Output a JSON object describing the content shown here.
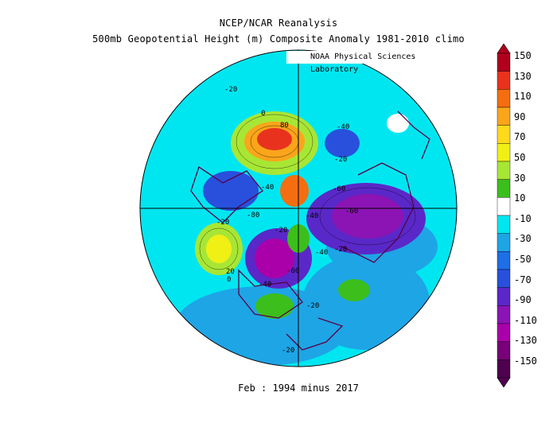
{
  "header": {
    "title": "NCEP/NCAR Reanalysis",
    "subtitle": "500mb Geopotential Height (m) Composite Anomaly 1981-2010 climo",
    "credit": "NOAA Physical Sciences Laboratory"
  },
  "footer": {
    "caption": "Feb : 1994 minus 2017"
  },
  "colorbar": {
    "labels": [
      "150",
      "130",
      "110",
      "90",
      "70",
      "50",
      "30",
      "10",
      "-10",
      "-30",
      "-50",
      "-70",
      "-90",
      "-110",
      "-130",
      "-150"
    ],
    "colors": [
      "#b0001e",
      "#e8321e",
      "#f46d10",
      "#fba51b",
      "#ffd91c",
      "#f0f015",
      "#a8e635",
      "#3cbe1c",
      "#ffffff",
      "#00e6f0",
      "#1ea5e6",
      "#1e6ee6",
      "#2850dc",
      "#5a28c8",
      "#8c14b4",
      "#aa00aa",
      "#780078",
      "#500050"
    ]
  },
  "map_labels": [
    {
      "text": "-20"
    },
    {
      "text": "-40"
    },
    {
      "text": "-20"
    },
    {
      "text": "-40"
    },
    {
      "text": "-60"
    },
    {
      "text": "-80"
    },
    {
      "text": "-60"
    },
    {
      "text": "-40"
    },
    {
      "text": "-20"
    },
    {
      "text": "-20"
    },
    {
      "text": "-60"
    },
    {
      "text": "-40"
    },
    {
      "text": "20"
    },
    {
      "text": "0"
    },
    {
      "text": "-20"
    },
    {
      "text": "-20"
    },
    {
      "text": "-20"
    },
    {
      "text": "-40"
    },
    {
      "text": "80"
    },
    {
      "text": "0"
    }
  ],
  "colors": {
    "ocean_base": "#00e6f0",
    "outline": "#5a0046"
  }
}
